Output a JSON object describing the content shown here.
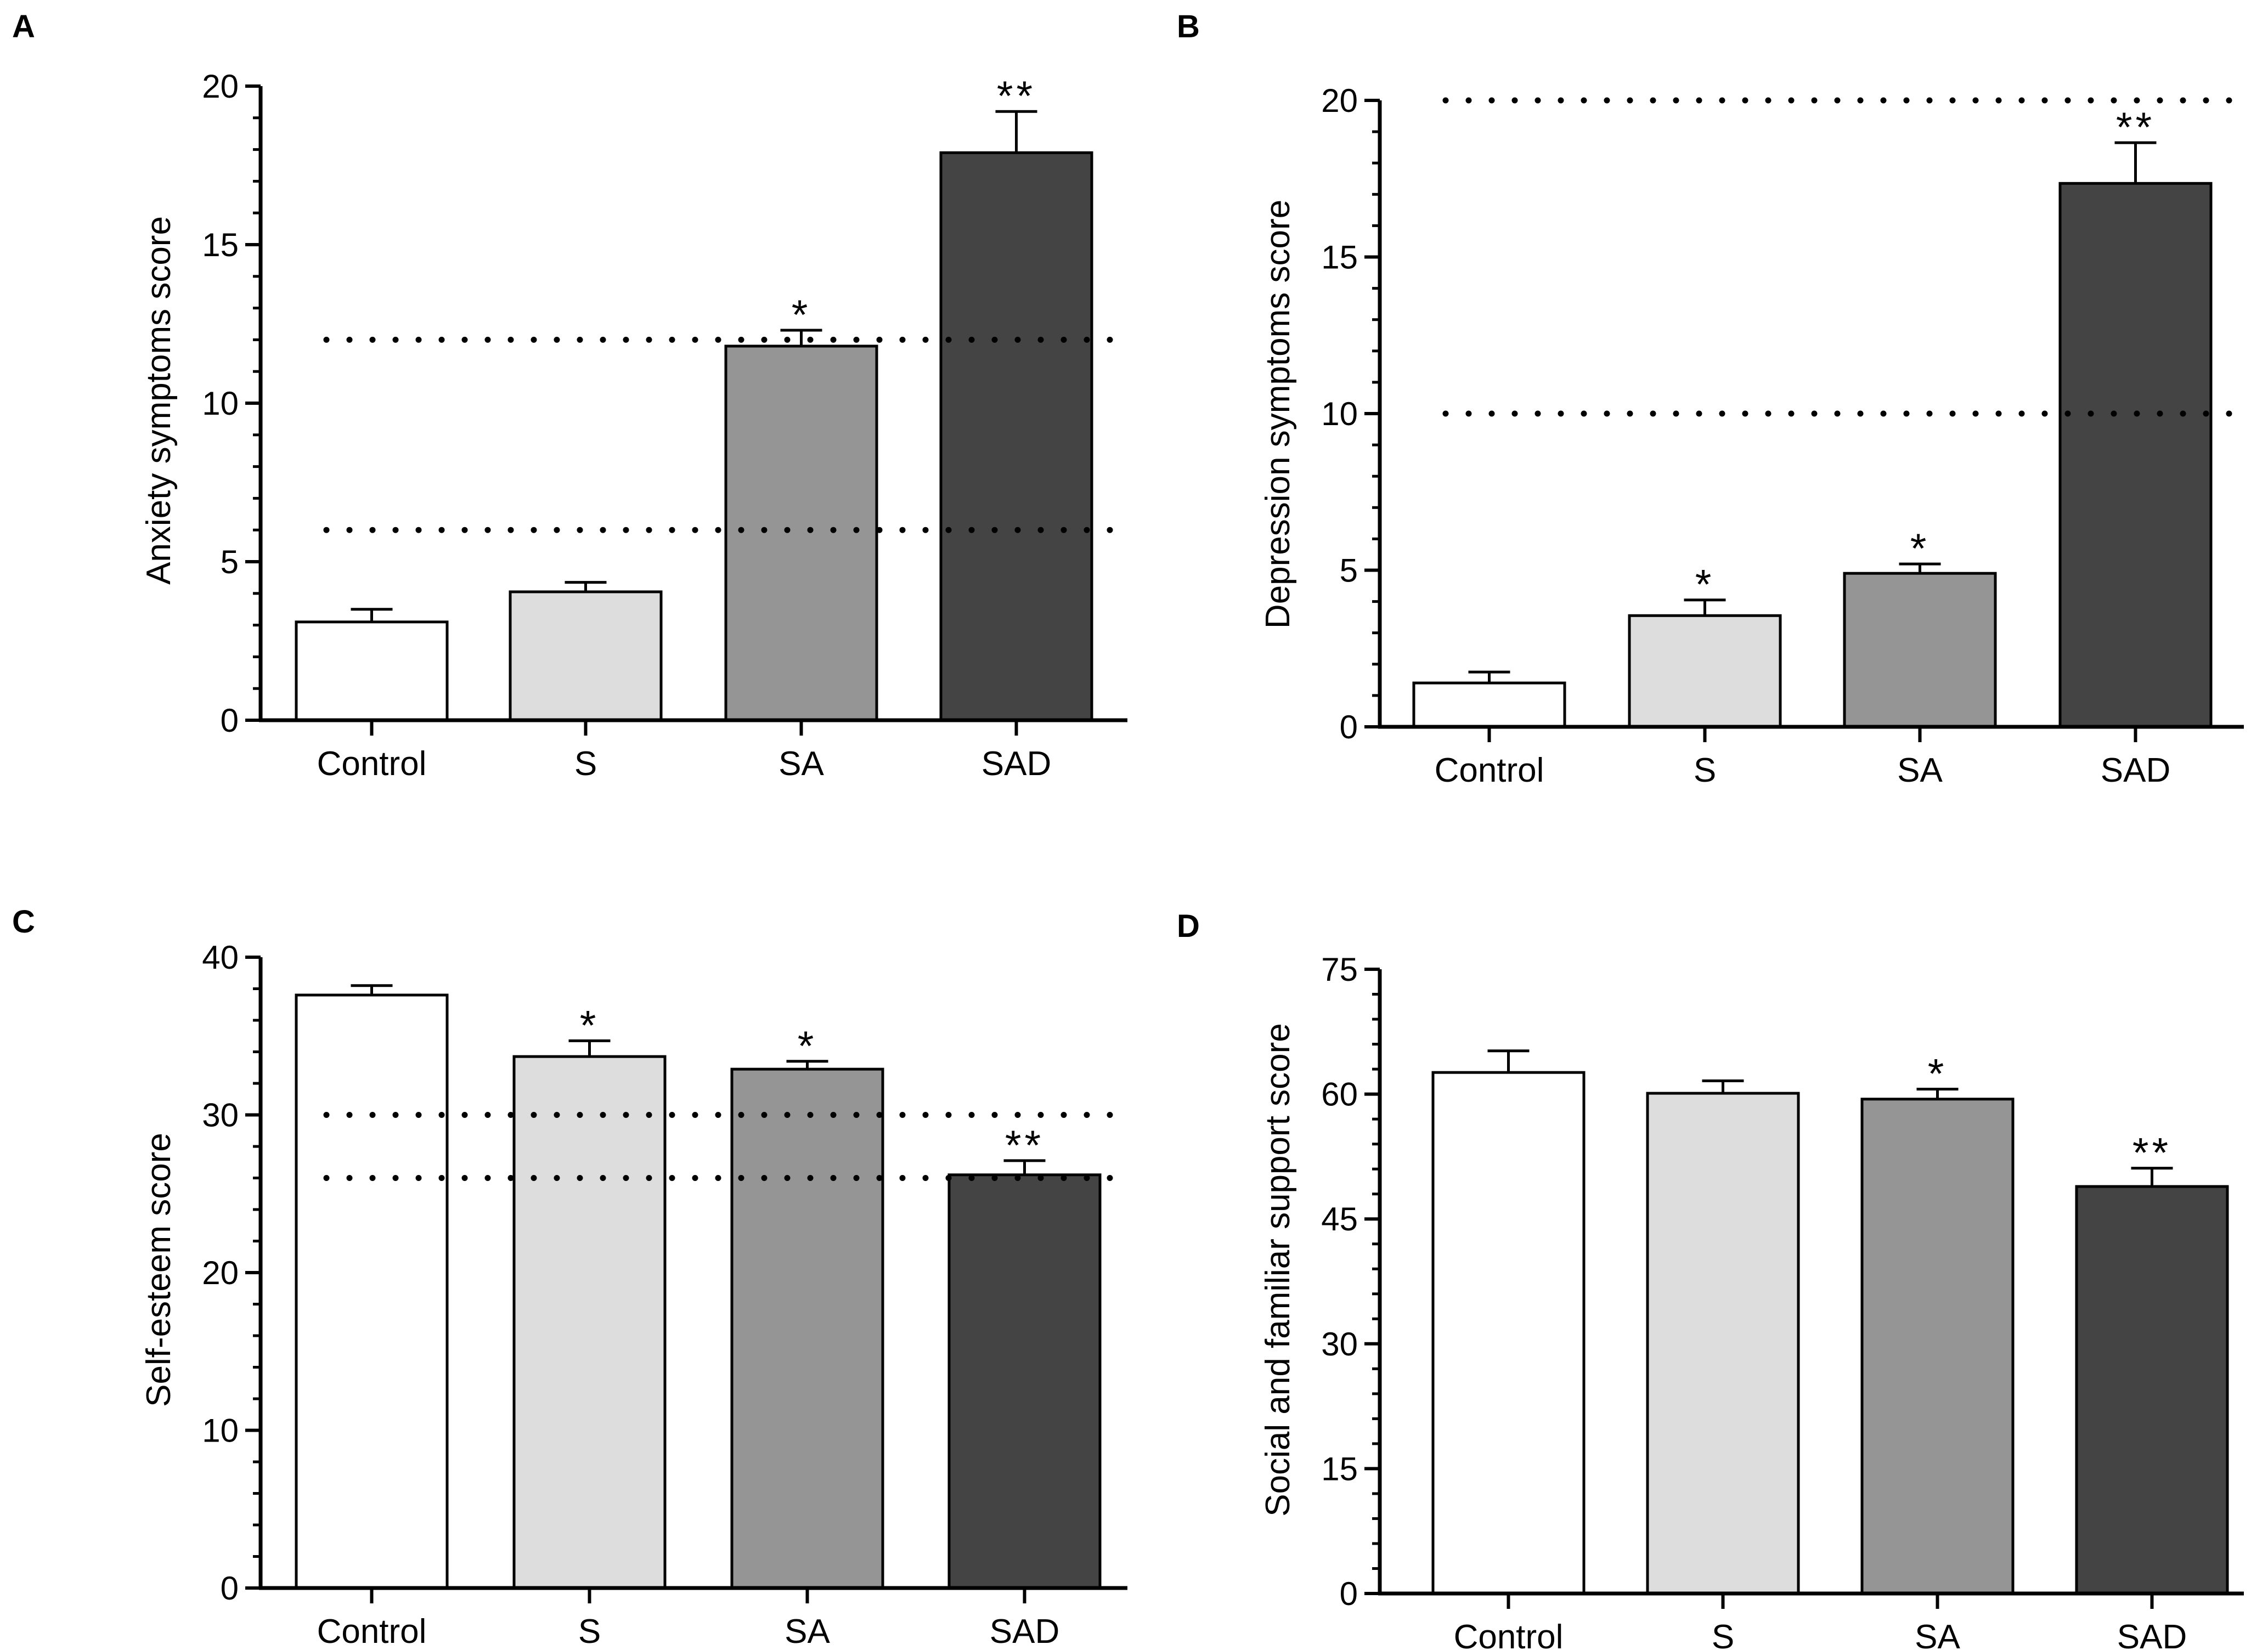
{
  "figure": {
    "colors": {
      "axis": "#000000",
      "bar_stroke": "#000000",
      "control": "#ffffff",
      "S": "#dddddd",
      "SA": "#959595",
      "SAD": "#444444"
    }
  },
  "chart_data": [
    {
      "panel": "A",
      "type": "bar",
      "title": "",
      "xlabel": "",
      "ylabel": "Anxiety symptoms score",
      "categories": [
        "Control",
        "S",
        "SA",
        "SAD"
      ],
      "values": [
        3.1,
        4.05,
        11.8,
        17.9
      ],
      "errors": [
        0.4,
        0.3,
        0.5,
        1.3
      ],
      "significance": [
        "",
        "",
        "*",
        "**"
      ],
      "ylim": [
        0,
        20
      ],
      "yticks": [
        0,
        5,
        10,
        15,
        20
      ],
      "minor_ticks_per_major": 5,
      "reference_lines": [
        6,
        12
      ],
      "grid": false,
      "legend": "none"
    },
    {
      "panel": "B",
      "type": "bar",
      "title": "",
      "xlabel": "",
      "ylabel": "Depression symptoms score",
      "categories": [
        "Control",
        "S",
        "SA",
        "SAD"
      ],
      "values": [
        1.4,
        3.55,
        4.9,
        17.35
      ],
      "errors": [
        0.35,
        0.5,
        0.3,
        1.3
      ],
      "significance": [
        "",
        "*",
        "*",
        "**"
      ],
      "ylim": [
        0,
        20
      ],
      "yticks": [
        0,
        5,
        10,
        15,
        20
      ],
      "minor_ticks_per_major": 5,
      "reference_lines": [
        10,
        20
      ],
      "grid": false,
      "legend": "none"
    },
    {
      "panel": "C",
      "type": "bar",
      "title": "",
      "xlabel": "",
      "ylabel": "Self-esteem score",
      "categories": [
        "Control",
        "S",
        "SA",
        "SAD"
      ],
      "values": [
        37.6,
        33.7,
        32.9,
        26.2
      ],
      "errors": [
        0.6,
        1.0,
        0.5,
        0.9
      ],
      "significance": [
        "",
        "*",
        "*",
        "**"
      ],
      "ylim": [
        0,
        40
      ],
      "yticks": [
        0,
        10,
        20,
        30,
        40
      ],
      "minor_ticks_per_major": 5,
      "reference_lines": [
        26,
        30
      ],
      "grid": false,
      "legend": "none"
    },
    {
      "panel": "D",
      "type": "bar",
      "title": "",
      "xlabel": "",
      "ylabel": "Social and familiar support score",
      "categories": [
        "Control",
        "S",
        "SA",
        "SAD"
      ],
      "values": [
        62.6,
        60.1,
        59.4,
        48.9
      ],
      "errors": [
        2.6,
        1.5,
        1.2,
        2.2
      ],
      "significance": [
        "",
        "",
        "*",
        "**"
      ],
      "ylim": [
        0,
        75
      ],
      "yticks": [
        0,
        15,
        30,
        45,
        60,
        75
      ],
      "minor_ticks_per_major": 5,
      "reference_lines": [],
      "grid": false,
      "legend": "none"
    }
  ]
}
